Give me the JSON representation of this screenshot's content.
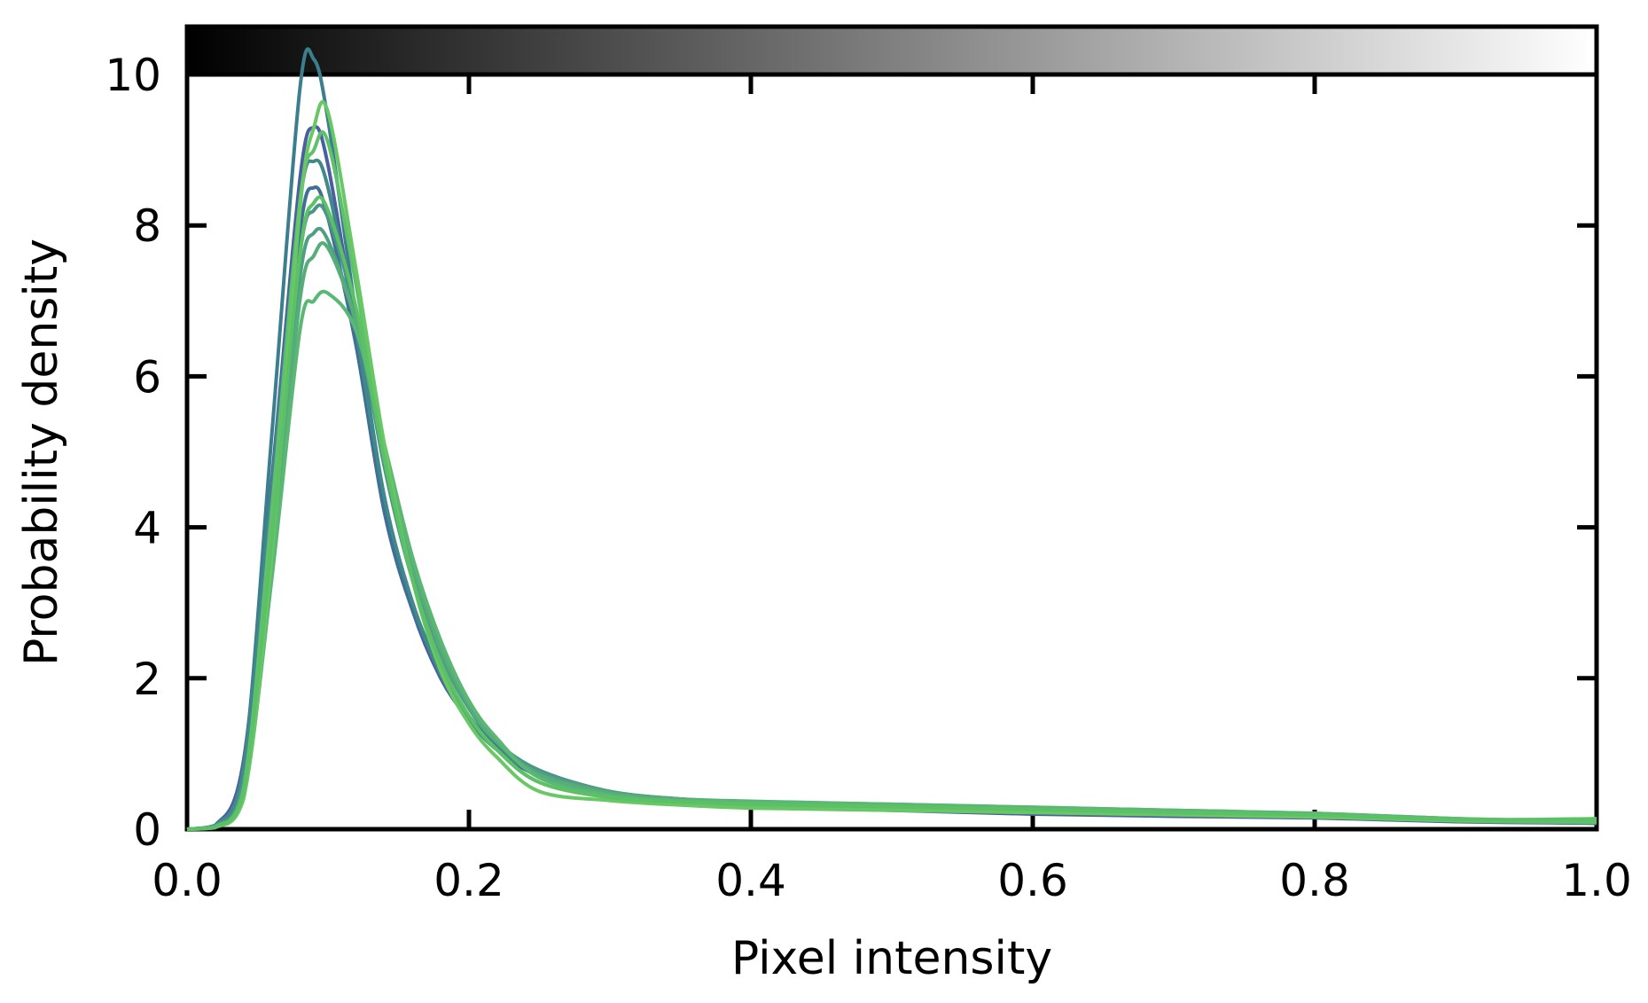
{
  "chart_data": {
    "type": "line",
    "xlabel": "Pixel intensity",
    "ylabel": "Probability density",
    "xlim": [
      0.0,
      1.0
    ],
    "ylim": [
      0,
      10.0
    ],
    "xticks": [
      "0.0",
      "0.2",
      "0.4",
      "0.6",
      "0.8",
      "1.0"
    ],
    "yticks": [
      "0",
      "2",
      "4",
      "6",
      "8",
      "10"
    ],
    "grid": false,
    "legend": "none",
    "colorbar": {
      "orientation": "horizontal",
      "position": "top",
      "from": "#000000",
      "to": "#ffffff"
    },
    "x": [
      0.0,
      0.02,
      0.04,
      0.06,
      0.08,
      0.09,
      0.1,
      0.12,
      0.14,
      0.16,
      0.18,
      0.2,
      0.22,
      0.25,
      0.3,
      0.35,
      0.4,
      0.5,
      0.6,
      0.7,
      0.8,
      0.9,
      1.0
    ],
    "series": [
      {
        "color": "#4a5fa0",
        "values": [
          0,
          0.05,
          0.9,
          4.6,
          8.6,
          9.3,
          8.8,
          6.6,
          4.3,
          2.9,
          2.0,
          1.45,
          1.05,
          0.7,
          0.45,
          0.35,
          0.3,
          0.25,
          0.2,
          0.17,
          0.15,
          0.1,
          0.08
        ]
      },
      {
        "color": "#3f6e96",
        "values": [
          0,
          0.05,
          0.7,
          4.2,
          7.9,
          8.5,
          8.1,
          6.4,
          4.2,
          2.9,
          2.1,
          1.5,
          1.1,
          0.75,
          0.45,
          0.35,
          0.3,
          0.26,
          0.22,
          0.19,
          0.16,
          0.11,
          0.08
        ]
      },
      {
        "color": "#3b7f8f",
        "values": [
          0,
          0.04,
          0.8,
          5.2,
          9.8,
          10.2,
          9.4,
          6.8,
          4.4,
          3.0,
          2.1,
          1.5,
          1.1,
          0.72,
          0.46,
          0.36,
          0.31,
          0.27,
          0.22,
          0.19,
          0.16,
          0.11,
          0.08
        ]
      },
      {
        "color": "#40888a",
        "values": [
          0,
          0.05,
          0.8,
          4.5,
          8.3,
          8.85,
          8.5,
          6.6,
          4.4,
          3.0,
          2.05,
          1.45,
          1.05,
          0.72,
          0.47,
          0.37,
          0.32,
          0.28,
          0.24,
          0.21,
          0.17,
          0.12,
          0.09
        ]
      },
      {
        "color": "#4a948a",
        "values": [
          0,
          0.04,
          0.6,
          3.9,
          7.6,
          8.2,
          8.1,
          6.8,
          4.8,
          3.3,
          2.3,
          1.6,
          1.15,
          0.78,
          0.5,
          0.4,
          0.35,
          0.3,
          0.26,
          0.22,
          0.18,
          0.12,
          0.09
        ]
      },
      {
        "color": "#4fa083",
        "values": [
          0,
          0.04,
          0.6,
          3.8,
          7.3,
          7.9,
          7.8,
          6.7,
          4.9,
          3.4,
          2.3,
          1.6,
          1.15,
          0.75,
          0.5,
          0.4,
          0.36,
          0.31,
          0.27,
          0.23,
          0.19,
          0.13,
          0.1
        ]
      },
      {
        "color": "#56ad7a",
        "values": [
          0,
          0.03,
          0.5,
          3.5,
          7.0,
          7.6,
          7.7,
          6.7,
          5.0,
          3.5,
          2.4,
          1.65,
          1.15,
          0.72,
          0.48,
          0.4,
          0.37,
          0.33,
          0.29,
          0.25,
          0.21,
          0.14,
          0.1
        ]
      },
      {
        "color": "#5bb774",
        "values": [
          0,
          0.03,
          0.4,
          3.3,
          6.6,
          7.0,
          7.1,
          6.6,
          5.1,
          3.6,
          2.5,
          1.7,
          1.2,
          0.68,
          0.45,
          0.38,
          0.36,
          0.33,
          0.29,
          0.25,
          0.21,
          0.14,
          0.1
        ]
      },
      {
        "color": "#62c06d",
        "values": [
          0,
          0.03,
          0.5,
          4.2,
          8.3,
          9.0,
          9.1,
          7.2,
          5.0,
          3.3,
          2.2,
          1.5,
          1.05,
          0.62,
          0.42,
          0.36,
          0.32,
          0.28,
          0.24,
          0.2,
          0.17,
          0.11,
          0.09
        ]
      },
      {
        "color": "#68c865",
        "values": [
          0,
          0.02,
          0.4,
          3.6,
          8.2,
          9.3,
          9.5,
          7.4,
          5.1,
          3.3,
          2.1,
          1.4,
          0.95,
          0.5,
          0.38,
          0.32,
          0.28,
          0.25,
          0.22,
          0.19,
          0.16,
          0.12,
          0.14
        ]
      },
      {
        "color": "#5cc065",
        "values": [
          0,
          0.03,
          0.5,
          3.8,
          7.6,
          8.3,
          8.2,
          6.9,
          4.9,
          3.3,
          2.2,
          1.5,
          1.05,
          0.62,
          0.42,
          0.36,
          0.33,
          0.3,
          0.26,
          0.22,
          0.19,
          0.13,
          0.13
        ]
      }
    ]
  }
}
